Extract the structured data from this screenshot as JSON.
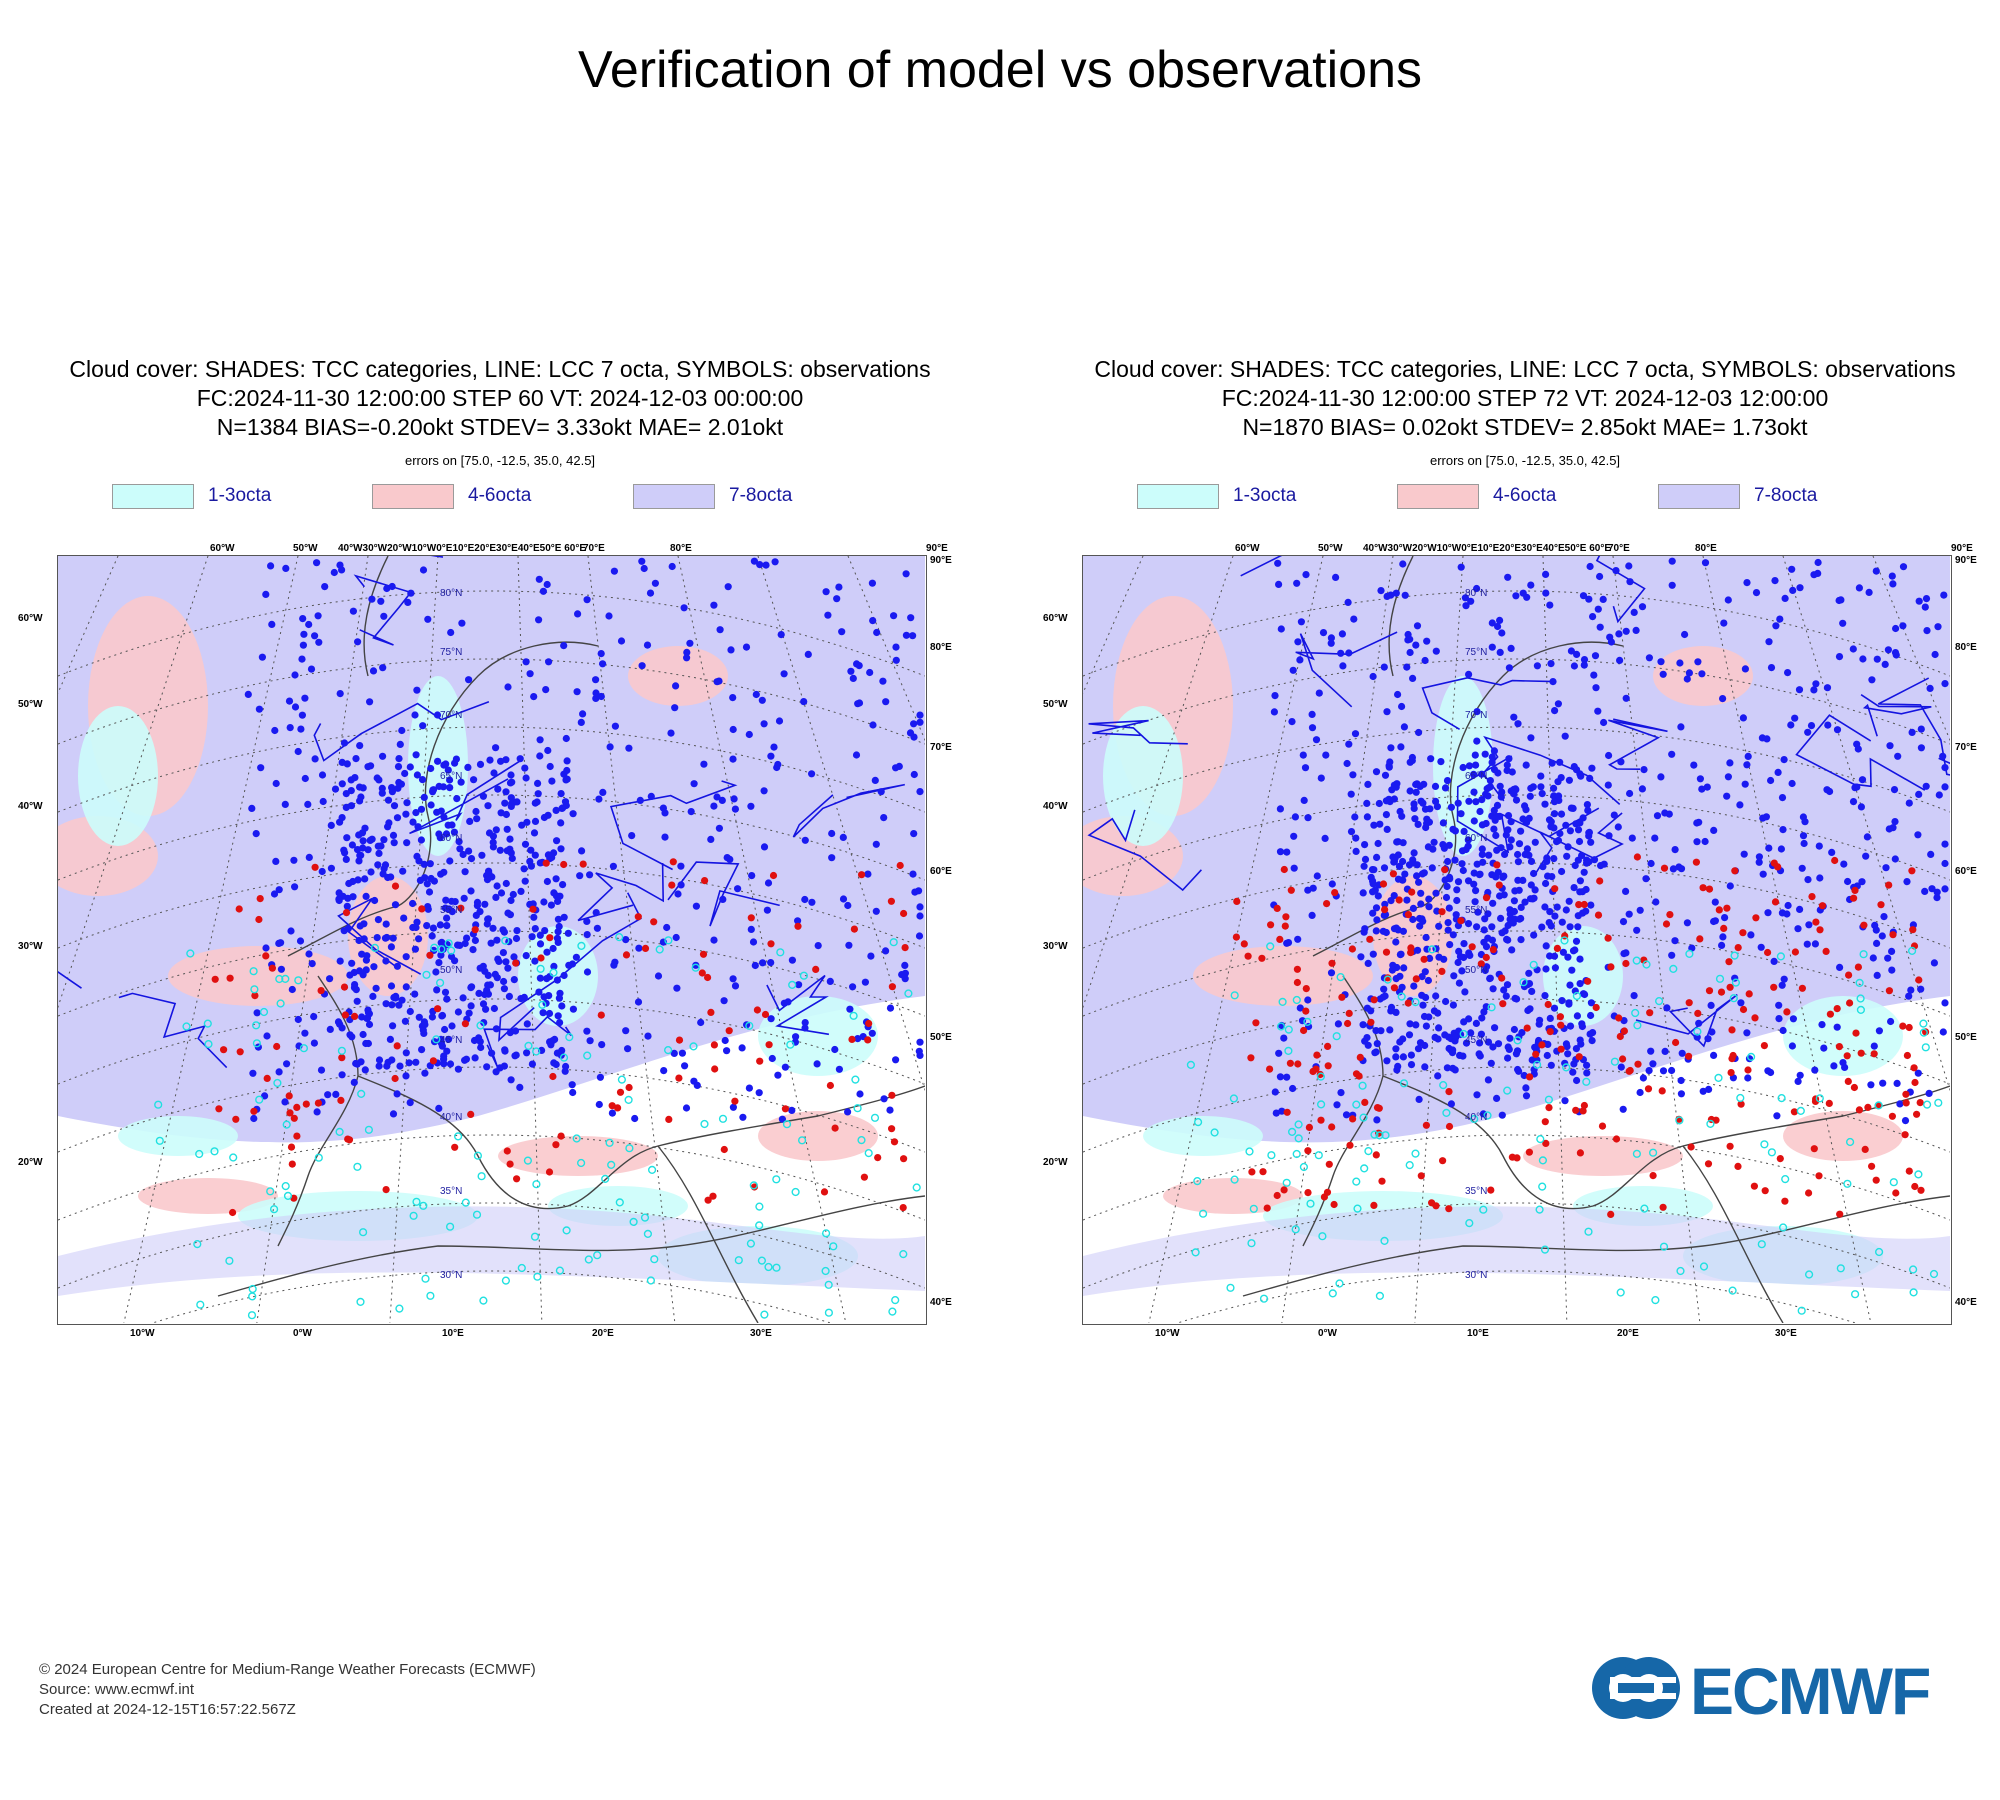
{
  "header": {
    "title": "Verification of model vs observations"
  },
  "colors": {
    "octa_1_3": "#ccfdfb",
    "octa_4_6": "#f9c9cc",
    "octa_7_8": "#cfcdf9",
    "lcc_line": "#1414e0",
    "obs_blue": "#1a1af0",
    "obs_red": "#e01010",
    "obs_cyan": "#20e0e0"
  },
  "panels": [
    {
      "title_line1": "Cloud cover: SHADES: TCC categories, LINE: LCC 7 octa, SYMBOLS: observations",
      "title_line2": "FC:2024-11-30 12:00:00 STEP 60 VT: 2024-12-03 00:00:00",
      "title_line3": "N=1384 BIAS=-0.20okt STDEV= 3.33okt MAE= 2.01okt",
      "title_line4": "errors on [75.0, -12.5, 35.0, 42.5]",
      "stats": {
        "n": 1384,
        "bias": -0.2,
        "stdev": 3.33,
        "mae": 2.01,
        "step": 60
      },
      "legend": [
        {
          "label": "1-3octa",
          "color": "#ccfdfb"
        },
        {
          "label": "4-6octa",
          "color": "#f9c9cc"
        },
        {
          "label": "7-8octa",
          "color": "#cfcdf9"
        }
      ],
      "labels": {
        "top": [
          "60°W",
          "50°W",
          "40°W30°W20°W10°W0°E10°E20°E30°E40°E50°E 60°E",
          "70°E",
          "80°E",
          "90°E"
        ],
        "left": [
          "60°W",
          "50°W",
          "40°W",
          "30°W",
          "20°W"
        ],
        "right": [
          "90°E",
          "80°E",
          "70°E",
          "60°E",
          "50°E",
          "40°E"
        ],
        "bottom": [
          "10°W",
          "0°W",
          "10°E",
          "20°E",
          "30°E"
        ],
        "lat": [
          "80°N",
          "75°N",
          "70°N",
          "65°N",
          "60°N",
          "55°N",
          "50°N",
          "45°N",
          "40°N",
          "35°N",
          "30°N"
        ]
      }
    },
    {
      "title_line1": "Cloud cover: SHADES: TCC categories, LINE: LCC 7 octa, SYMBOLS: observations",
      "title_line2": "FC:2024-11-30 12:00:00 STEP 72 VT: 2024-12-03 12:00:00",
      "title_line3": "N=1870 BIAS= 0.02okt STDEV= 2.85okt MAE= 1.73okt",
      "title_line4": "errors on [75.0, -12.5, 35.0, 42.5]",
      "stats": {
        "n": 1870,
        "bias": 0.02,
        "stdev": 2.85,
        "mae": 1.73,
        "step": 72
      },
      "legend": [
        {
          "label": "1-3octa",
          "color": "#ccfdfb"
        },
        {
          "label": "4-6octa",
          "color": "#f9c9cc"
        },
        {
          "label": "7-8octa",
          "color": "#cfcdf9"
        }
      ],
      "labels": {
        "top": [
          "60°W",
          "50°W",
          "40°W30°W20°W10°W0°E10°E20°E30°E40°E50°E 60°E",
          "70°E",
          "80°E",
          "90°E"
        ],
        "left": [
          "60°W",
          "50°W",
          "40°W",
          "30°W",
          "20°W"
        ],
        "right": [
          "90°E",
          "80°E",
          "70°E",
          "60°E",
          "50°E",
          "40°E"
        ],
        "bottom": [
          "10°W",
          "0°W",
          "10°E",
          "20°E",
          "30°E"
        ],
        "lat": [
          "80°N",
          "75°N",
          "70°N",
          "65°N",
          "60°N",
          "55°N",
          "50°N",
          "45°N",
          "40°N",
          "35°N",
          "30°N"
        ]
      }
    }
  ],
  "footer": {
    "line1": "© 2024 European Centre for Medium-Range Weather Forecasts (ECMWF)",
    "line2": "Source: www.ecmwf.int",
    "line3": "Created at 2024-12-15T16:57:22.567Z"
  },
  "logo": {
    "text": "ECMWF"
  }
}
